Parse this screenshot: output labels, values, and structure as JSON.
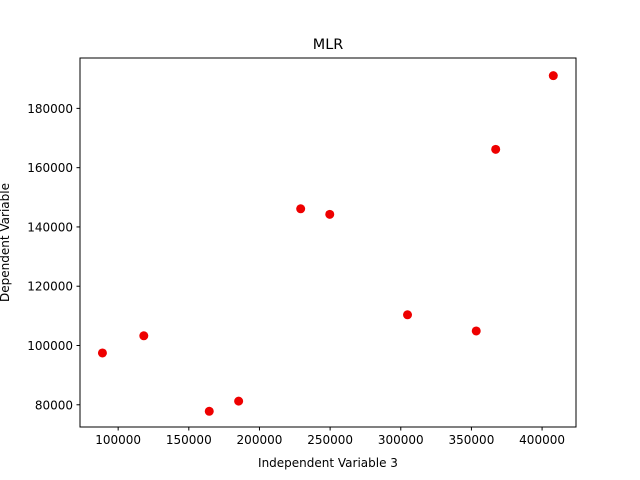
{
  "chart_data": {
    "type": "scatter",
    "title": "MLR",
    "xlabel": "Independent Variable 3",
    "ylabel": "Dependent Variable",
    "xlim": [
      73000,
      424000
    ],
    "ylim": [
      72500,
      197000
    ],
    "xticks": [
      100000,
      150000,
      200000,
      250000,
      300000,
      350000,
      400000
    ],
    "yticks": [
      80000,
      100000,
      120000,
      140000,
      160000,
      180000
    ],
    "grid": false,
    "marker_color": "#ee0000",
    "points": [
      {
        "x": 407934,
        "y": 191050
      },
      {
        "x": 367168,
        "y": 166188
      },
      {
        "x": 229161,
        "y": 146122
      },
      {
        "x": 249745,
        "y": 144259
      },
      {
        "x": 304768,
        "y": 110352
      },
      {
        "x": 353399,
        "y": 104900
      },
      {
        "x": 118148,
        "y": 103282
      },
      {
        "x": 88875,
        "y": 97484
      },
      {
        "x": 185265,
        "y": 81229
      },
      {
        "x": 164470,
        "y": 77798
      }
    ]
  }
}
